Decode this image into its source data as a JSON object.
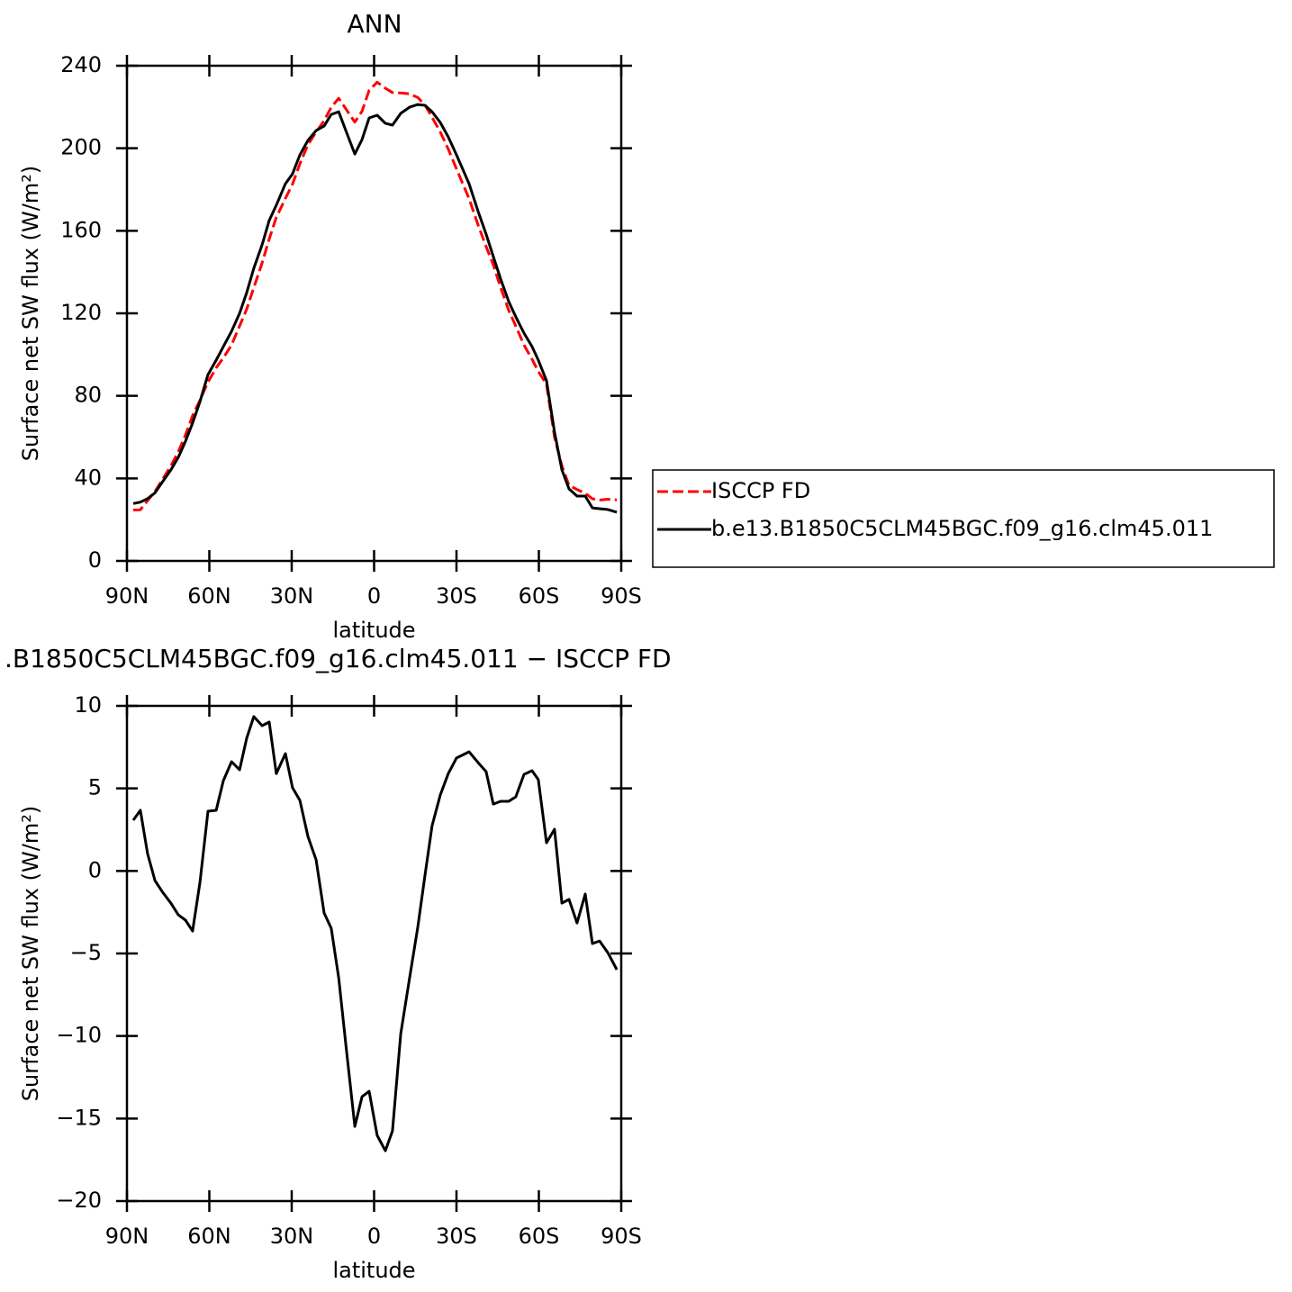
{
  "chart_data": [
    {
      "type": "line",
      "title": "ANN",
      "xlabel": "latitude",
      "ylabel": "Surface net SW flux (W/m²)",
      "x": [
        87.7,
        85.1,
        82.5,
        79.8,
        77.2,
        74.0,
        71.3,
        68.7,
        66.1,
        63.4,
        60.5,
        57.5,
        54.9,
        51.9,
        49.0,
        46.4,
        43.8,
        40.8,
        38.2,
        35.6,
        32.3,
        29.7,
        27.0,
        24.1,
        21.1,
        18.2,
        15.6,
        12.9,
        10.3,
        7.0,
        4.4,
        1.8,
        -1.1,
        -4.1,
        -6.7,
        -9.7,
        -12.9,
        -15.9,
        -18.5,
        -21.1,
        -24.1,
        -27.0,
        -30.0,
        -34.6,
        -37.9,
        -40.8,
        -43.4,
        -46.1,
        -49.0,
        -51.6,
        -54.6,
        -57.5,
        -59.8,
        -62.8,
        -65.7,
        -68.4,
        -71.0,
        -73.9,
        -76.9,
        -79.5,
        -82.1,
        -85.1,
        -88.4
      ],
      "series": [
        {
          "name": "ISCCP FD",
          "color": "#ff0000",
          "dashed": true,
          "values": [
            24.7,
            24.8,
            29.2,
            33.6,
            39.2,
            46.1,
            52.9,
            61.0,
            70.4,
            77.9,
            86.7,
            93.6,
            98.4,
            104.7,
            113.9,
            122.0,
            132.5,
            144.4,
            156.0,
            166.5,
            175.7,
            182.6,
            192.5,
            201.7,
            207.9,
            213.4,
            219.9,
            224.2,
            219.1,
            212.7,
            217.9,
            228.1,
            232.0,
            229.1,
            227.0,
            226.8,
            226.4,
            224.6,
            221.1,
            215.0,
            207.9,
            199.6,
            190.0,
            175.6,
            162.7,
            152.4,
            143.5,
            132.4,
            121.5,
            113.8,
            104.6,
            97.8,
            91.8,
            85.6,
            59.9,
            46.1,
            36.6,
            34.6,
            32.8,
            30.1,
            29.5,
            29.9,
            29.6
          ]
        },
        {
          "name": "b.e13.B1850C5CLM45BGC.f09_g16.clm45.011",
          "color": "#000000",
          "dashed": false,
          "values": [
            27.8,
            28.5,
            30.2,
            33.0,
            38.0,
            44.1,
            50.2,
            58.0,
            66.8,
            77.2,
            90.3,
            97.3,
            103.9,
            111.3,
            120.0,
            130.0,
            141.8,
            153.2,
            165.0,
            172.4,
            182.8,
            187.6,
            196.8,
            203.8,
            208.6,
            210.8,
            216.4,
            217.7,
            208.6,
            197.2,
            204.2,
            214.7,
            216.0,
            212.1,
            211.2,
            216.9,
            219.9,
            221.2,
            220.8,
            217.7,
            212.5,
            205.5,
            196.8,
            182.8,
            169.3,
            158.4,
            147.5,
            136.6,
            125.7,
            118.3,
            110.4,
            103.9,
            97.3,
            87.3,
            62.4,
            44.1,
            34.9,
            31.4,
            31.4,
            25.7,
            25.3,
            24.9,
            23.6
          ]
        }
      ],
      "xlim": [
        90,
        -90
      ],
      "xticks": [
        {
          "value": 90,
          "label": "90N"
        },
        {
          "value": 60,
          "label": "60N"
        },
        {
          "value": 30,
          "label": "30N"
        },
        0,
        {
          "value": -30,
          "label": "30S"
        },
        {
          "value": -60,
          "label": "60S"
        },
        {
          "value": -90,
          "label": "90S"
        }
      ],
      "ylim": [
        0,
        240
      ],
      "yticks": [
        0,
        40,
        80,
        120,
        160,
        200,
        240
      ],
      "legend": "right"
    },
    {
      "type": "line",
      "title": ".B1850C5CLM45BGC.f09_g16.clm45.011 − ISCCP FD",
      "xlabel": "latitude",
      "ylabel": "Surface net SW flux (W/m²)",
      "x": [
        87.7,
        85.1,
        82.5,
        79.8,
        77.2,
        74.0,
        71.3,
        68.7,
        66.1,
        63.4,
        60.5,
        57.5,
        54.9,
        51.9,
        49.0,
        46.4,
        43.8,
        40.8,
        38.2,
        35.6,
        32.3,
        29.7,
        27.0,
        24.1,
        21.1,
        18.2,
        15.6,
        12.9,
        10.3,
        7.0,
        4.4,
        1.8,
        -1.1,
        -4.1,
        -6.7,
        -9.7,
        -12.9,
        -15.9,
        -18.5,
        -21.1,
        -24.1,
        -27.0,
        -30.0,
        -34.6,
        -37.9,
        -40.8,
        -43.4,
        -46.1,
        -49.0,
        -51.6,
        -54.6,
        -57.5,
        -59.8,
        -62.8,
        -65.7,
        -68.4,
        -71.0,
        -73.9,
        -76.9,
        -79.5,
        -82.1,
        -85.1,
        -88.4
      ],
      "series": [
        {
          "color": "#000000",
          "dashed": false,
          "values": [
            3.07,
            3.67,
            1.05,
            -0.58,
            -1.24,
            -1.95,
            -2.66,
            -2.98,
            -3.64,
            -0.69,
            3.62,
            3.67,
            5.47,
            6.62,
            6.13,
            8.04,
            9.35,
            8.8,
            9.02,
            5.9,
            7.11,
            5.04,
            4.27,
            2.09,
            0.67,
            -2.55,
            -3.47,
            -6.48,
            -10.51,
            -15.48,
            -13.68,
            -13.35,
            -16.02,
            -16.95,
            -15.75,
            -9.86,
            -6.53,
            -3.42,
            -0.31,
            2.74,
            4.6,
            5.9,
            6.84,
            7.22,
            6.56,
            6.02,
            4.05,
            4.22,
            4.22,
            4.49,
            5.85,
            6.07,
            5.53,
            1.71,
            2.53,
            -1.95,
            -1.73,
            -3.15,
            -1.4,
            -4.4,
            -4.24,
            -4.95,
            -5.98
          ]
        }
      ],
      "xlim": [
        90,
        -90
      ],
      "xticks": [
        {
          "value": 90,
          "label": "90N"
        },
        {
          "value": 60,
          "label": "60N"
        },
        {
          "value": 30,
          "label": "30N"
        },
        0,
        {
          "value": -30,
          "label": "30S"
        },
        {
          "value": -60,
          "label": "60S"
        },
        {
          "value": -90,
          "label": "90S"
        }
      ],
      "ylim": [
        -20,
        10
      ],
      "yticks": [
        {
          "value": -20,
          "label": "−20"
        },
        {
          "value": -15,
          "label": "−15"
        },
        {
          "value": -10,
          "label": "−10"
        },
        {
          "value": -5,
          "label": "−5"
        },
        0,
        5,
        10
      ]
    }
  ]
}
